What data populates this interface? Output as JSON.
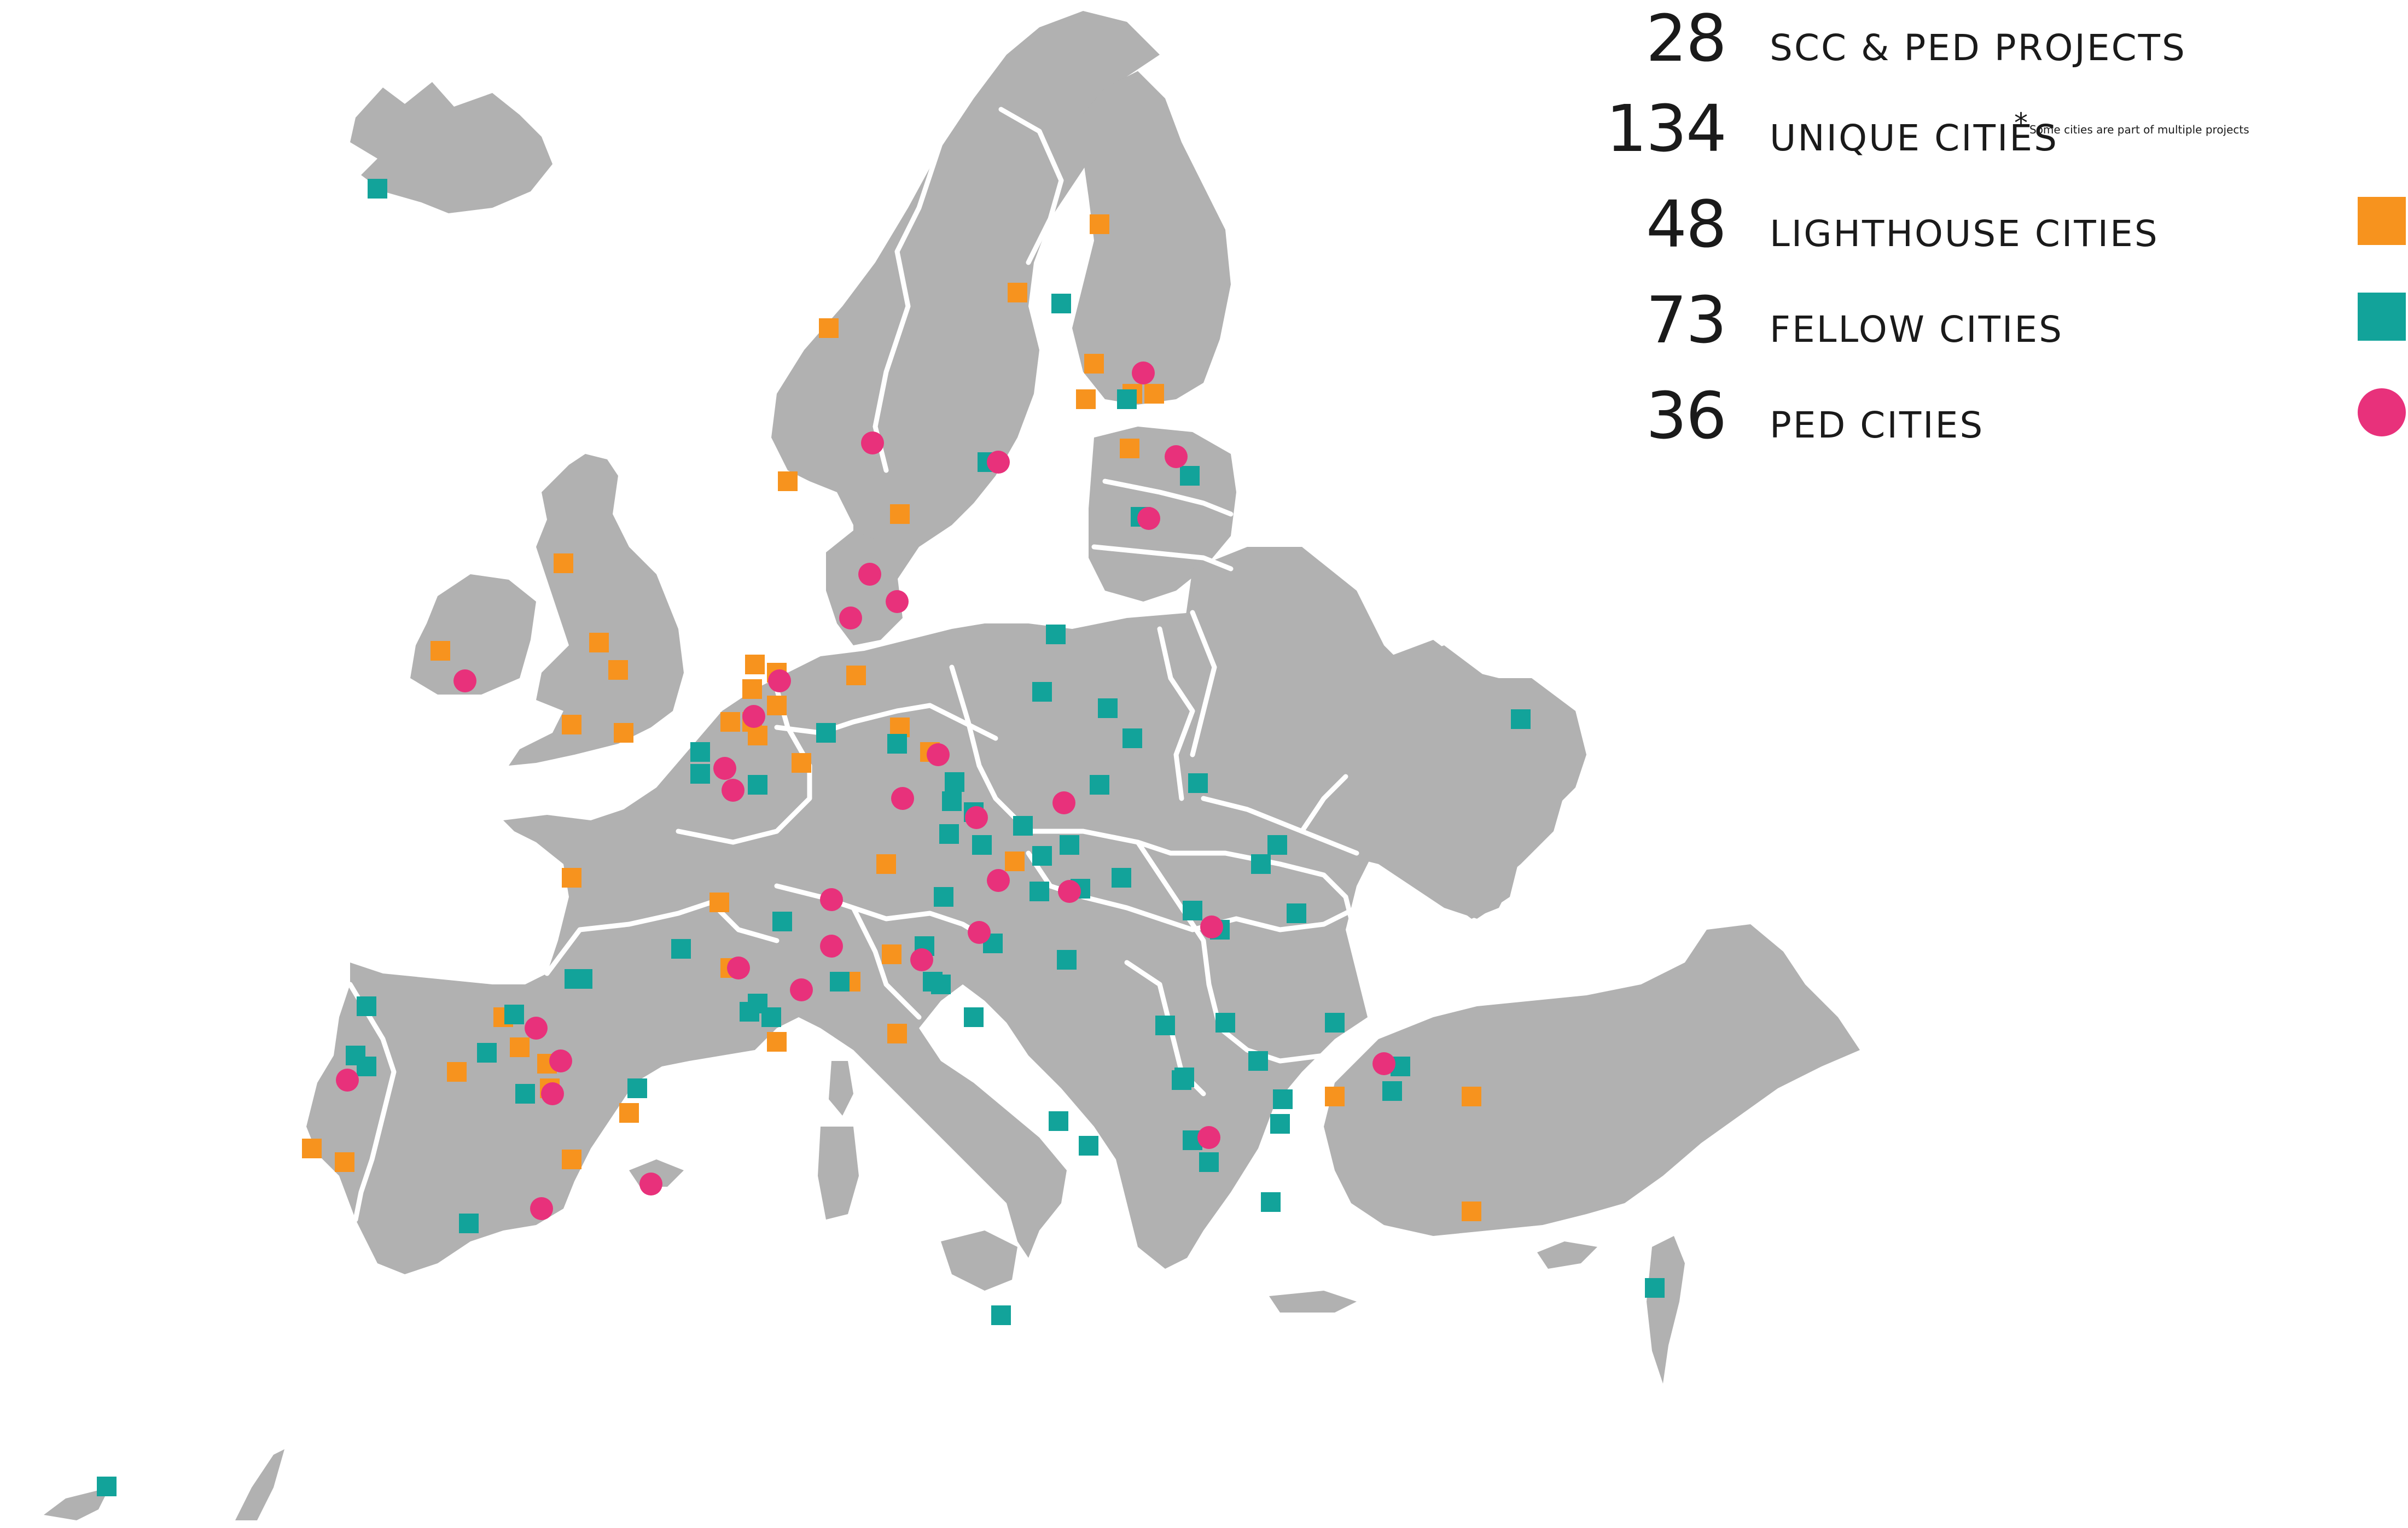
{
  "stats": [
    {
      "number": "28",
      "label": "SCC & PED PROJECTS"
    },
    {
      "number": "134",
      "label": "UNIQUE CITIES",
      "footnote_mark": "*",
      "footnote": "Some cities are part of multiple projects"
    },
    {
      "number": "48",
      "label": "LIGHTHOUSE CITIES",
      "legend_shape": "square",
      "legend_color": "#f7931e"
    },
    {
      "number": "73",
      "label": "FELLOW CITIES",
      "legend_shape": "square",
      "legend_color": "#12a39a"
    },
    {
      "number": "36",
      "label": "PED CITIES",
      "legend_shape": "circle",
      "legend_color": "#e8317b"
    }
  ],
  "colors": {
    "land": "#b1b1b1",
    "borders": "#ffffff",
    "lighthouse": "#f7931e",
    "fellow": "#12a39a",
    "ped": "#e8317b"
  }
}
